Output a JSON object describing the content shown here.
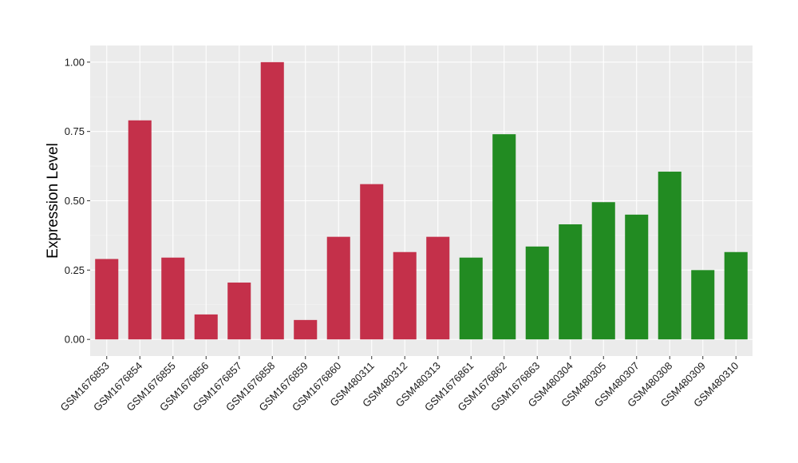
{
  "chart_data": {
    "type": "bar",
    "title": "",
    "xlabel": "",
    "ylabel": "Expression Level",
    "ylim": [
      -0.06,
      1.06
    ],
    "yticks": [
      0.0,
      0.25,
      0.5,
      0.75,
      1.0
    ],
    "ytick_labels": [
      "0.00",
      "0.25",
      "0.50",
      "0.75",
      "1.00"
    ],
    "grid": true,
    "legend": "none",
    "categories": [
      "GSM1676853",
      "GSM1676854",
      "GSM1676855",
      "GSM1676856",
      "GSM1676857",
      "GSM1676858",
      "GSM1676859",
      "GSM1676860",
      "GSM480311",
      "GSM480312",
      "GSM480313",
      "GSM1676861",
      "GSM1676862",
      "GSM1676863",
      "GSM480304",
      "GSM480305",
      "GSM480307",
      "GSM480308",
      "GSM480309",
      "GSM480310"
    ],
    "values": [
      0.29,
      0.79,
      0.295,
      0.09,
      0.205,
      1.0,
      0.07,
      0.37,
      0.56,
      0.315,
      0.37,
      0.295,
      0.74,
      0.335,
      0.415,
      0.495,
      0.45,
      0.605,
      0.25,
      0.315
    ],
    "bar_groups": [
      "red",
      "red",
      "red",
      "red",
      "red",
      "red",
      "red",
      "red",
      "red",
      "red",
      "red",
      "green",
      "green",
      "green",
      "green",
      "green",
      "green",
      "green",
      "green",
      "green"
    ],
    "colors": {
      "red": "#C4304A",
      "green": "#228B22",
      "panel_background": "#EBEBEB",
      "grid_major": "#FFFFFF",
      "grid_minor": "#F4F4F4",
      "tick_color": "#333333"
    }
  }
}
